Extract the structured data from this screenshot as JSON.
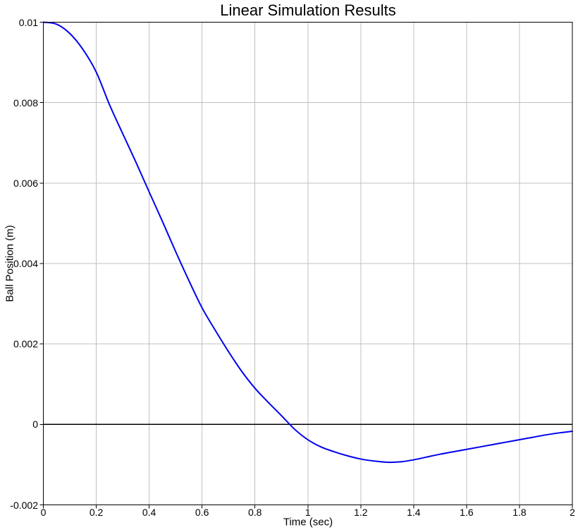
{
  "figure": {
    "background": "#ffffff",
    "text_color": "#000000"
  },
  "chart_data": {
    "type": "line",
    "title": "Linear Simulation Results",
    "xlabel": "Time (sec)",
    "ylabel": "Ball Position (m)",
    "xlim": [
      0,
      2
    ],
    "ylim": [
      -0.002,
      0.01
    ],
    "grid": true,
    "grid_color": "#c0c0c0",
    "axis_color": "#000000",
    "zero_line": true,
    "zero_line_color": "#000000",
    "legend": "none",
    "x_ticks": [
      {
        "v": 0,
        "label": "0"
      },
      {
        "v": 0.2,
        "label": "0.2"
      },
      {
        "v": 0.4,
        "label": "0.4"
      },
      {
        "v": 0.6,
        "label": "0.6"
      },
      {
        "v": 0.8,
        "label": "0.8"
      },
      {
        "v": 1,
        "label": "1"
      },
      {
        "v": 1.2,
        "label": "1.2"
      },
      {
        "v": 1.4,
        "label": "1.4"
      },
      {
        "v": 1.6,
        "label": "1.6"
      },
      {
        "v": 1.8,
        "label": "1.8"
      },
      {
        "v": 2,
        "label": "2"
      }
    ],
    "y_ticks": [
      {
        "v": 0.01,
        "label": "0.01"
      },
      {
        "v": 0.008,
        "label": "0.008"
      },
      {
        "v": 0.006,
        "label": "0.006"
      },
      {
        "v": 0.004,
        "label": "0.004"
      },
      {
        "v": 0.002,
        "label": "0.002"
      },
      {
        "v": 0,
        "label": "0"
      },
      {
        "v": -0.002,
        "label": "-0.002"
      }
    ],
    "series": [
      {
        "name": "ball-position",
        "color": "#0000ee",
        "line_width": 2,
        "points": [
          [
            0.0,
            0.01
          ],
          [
            0.05,
            0.00995
          ],
          [
            0.1,
            0.00972
          ],
          [
            0.15,
            0.00932
          ],
          [
            0.2,
            0.00876
          ],
          [
            0.25,
            0.00795
          ],
          [
            0.3,
            0.00723
          ],
          [
            0.35,
            0.00652
          ],
          [
            0.4,
            0.00578
          ],
          [
            0.45,
            0.00505
          ],
          [
            0.5,
            0.0043
          ],
          [
            0.55,
            0.00358
          ],
          [
            0.6,
            0.0029
          ],
          [
            0.65,
            0.00234
          ],
          [
            0.7,
            0.00181
          ],
          [
            0.75,
            0.00132
          ],
          [
            0.8,
            0.0009
          ],
          [
            0.85,
            0.00055
          ],
          [
            0.9,
            0.00022
          ],
          [
            0.95,
            -0.00012
          ],
          [
            1.0,
            -0.00038
          ],
          [
            1.05,
            -0.00056
          ],
          [
            1.1,
            -0.00068
          ],
          [
            1.15,
            -0.00078
          ],
          [
            1.2,
            -0.00086
          ],
          [
            1.25,
            -0.00091
          ],
          [
            1.3,
            -0.00094
          ],
          [
            1.35,
            -0.00093
          ],
          [
            1.4,
            -0.00088
          ],
          [
            1.45,
            -0.00081
          ],
          [
            1.5,
            -0.00074
          ],
          [
            1.55,
            -0.00068
          ],
          [
            1.6,
            -0.00062
          ],
          [
            1.65,
            -0.00056
          ],
          [
            1.7,
            -0.0005
          ],
          [
            1.75,
            -0.00044
          ],
          [
            1.8,
            -0.00038
          ],
          [
            1.85,
            -0.00032
          ],
          [
            1.9,
            -0.00026
          ],
          [
            1.95,
            -0.00021
          ],
          [
            2.0,
            -0.00017
          ]
        ]
      }
    ]
  }
}
